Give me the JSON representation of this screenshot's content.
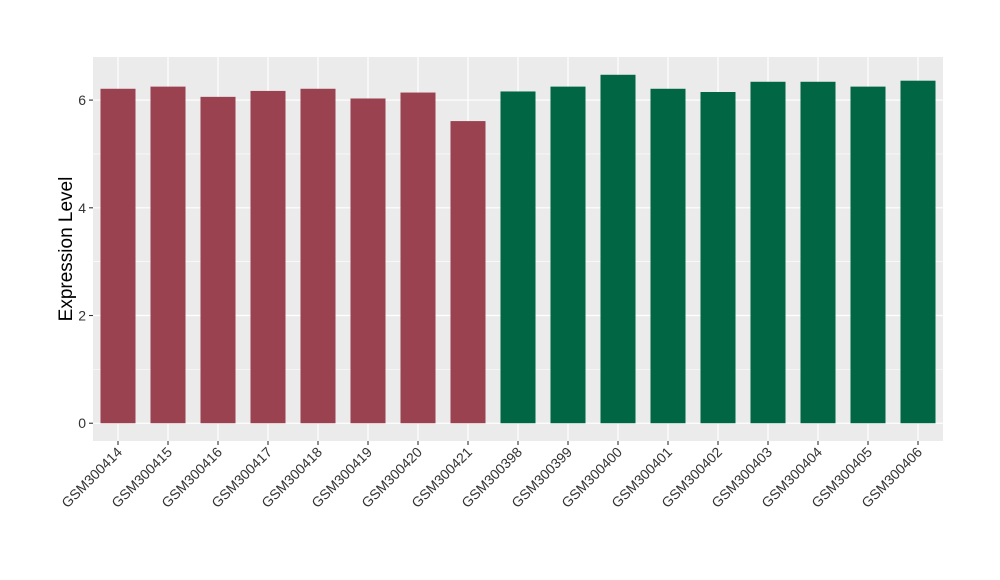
{
  "chart_data": {
    "type": "bar",
    "title": "",
    "xlabel": "",
    "ylabel": "Expression Level",
    "ylim": [
      0,
      6.8
    ],
    "yticks": [
      0,
      2,
      4,
      6
    ],
    "yticks_labels": [
      "0",
      "2",
      "4",
      "6"
    ],
    "grid": true,
    "legend": "none",
    "categories": [
      "GSM300414",
      "GSM300415",
      "GSM300416",
      "GSM300417",
      "GSM300418",
      "GSM300419",
      "GSM300420",
      "GSM300421",
      "GSM300398",
      "GSM300399",
      "GSM300400",
      "GSM300401",
      "GSM300402",
      "GSM300403",
      "GSM300404",
      "GSM300405",
      "GSM300406"
    ],
    "values": [
      6.21,
      6.25,
      6.06,
      6.17,
      6.21,
      6.03,
      6.14,
      5.61,
      6.16,
      6.25,
      6.47,
      6.21,
      6.15,
      6.34,
      6.34,
      6.25,
      6.36
    ],
    "group": [
      0,
      0,
      0,
      0,
      0,
      0,
      0,
      0,
      1,
      1,
      1,
      1,
      1,
      1,
      1,
      1,
      1
    ],
    "colors": [
      "#9a4250",
      "#006643"
    ],
    "panel_background": "#ebebeb",
    "gridline_color": "#ffffff"
  }
}
